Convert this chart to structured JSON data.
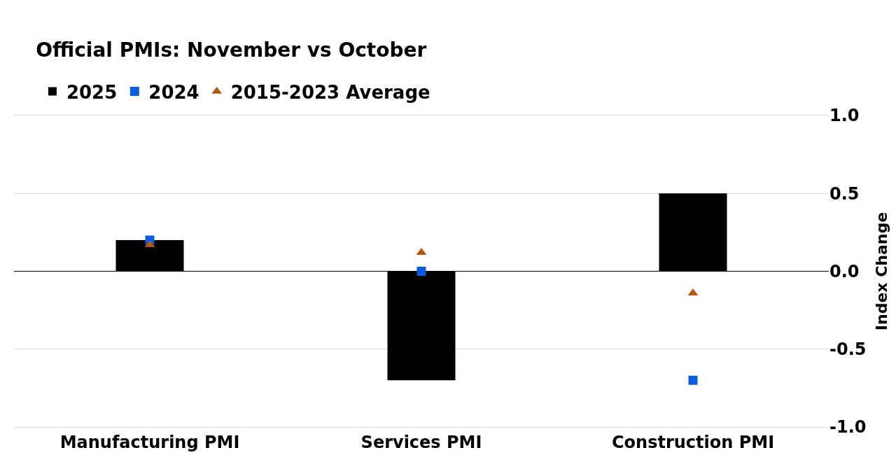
{
  "chart_data": {
    "type": "bar",
    "title": "Official PMIs: November vs October",
    "ylabel": "Index Change",
    "categories": [
      "Manufacturing PMI",
      "Services PMI",
      "Construction PMI"
    ],
    "series": [
      {
        "name": "2025",
        "color": "#000000",
        "values": [
          0.2,
          -0.7,
          0.5
        ]
      },
      {
        "name": "2024",
        "type": "scatter",
        "marker": "square",
        "color": "#0b5ce0",
        "values": [
          0.2,
          0.0,
          -0.7
        ]
      },
      {
        "name": "2015-2023 Average",
        "type": "scatter",
        "marker": "triangle",
        "color": "#b5560f",
        "values": [
          0.17,
          0.12,
          -0.14
        ]
      }
    ],
    "ylim": [
      -1.0,
      1.0
    ],
    "yticks": [
      {
        "value": 1.0,
        "label": "1.0"
      },
      0.5,
      {
        "value": 0.0,
        "label": "0.0"
      },
      -0.5,
      {
        "value": -1.0,
        "label": "-1.0"
      }
    ],
    "grid": "y",
    "legend": "top left"
  }
}
